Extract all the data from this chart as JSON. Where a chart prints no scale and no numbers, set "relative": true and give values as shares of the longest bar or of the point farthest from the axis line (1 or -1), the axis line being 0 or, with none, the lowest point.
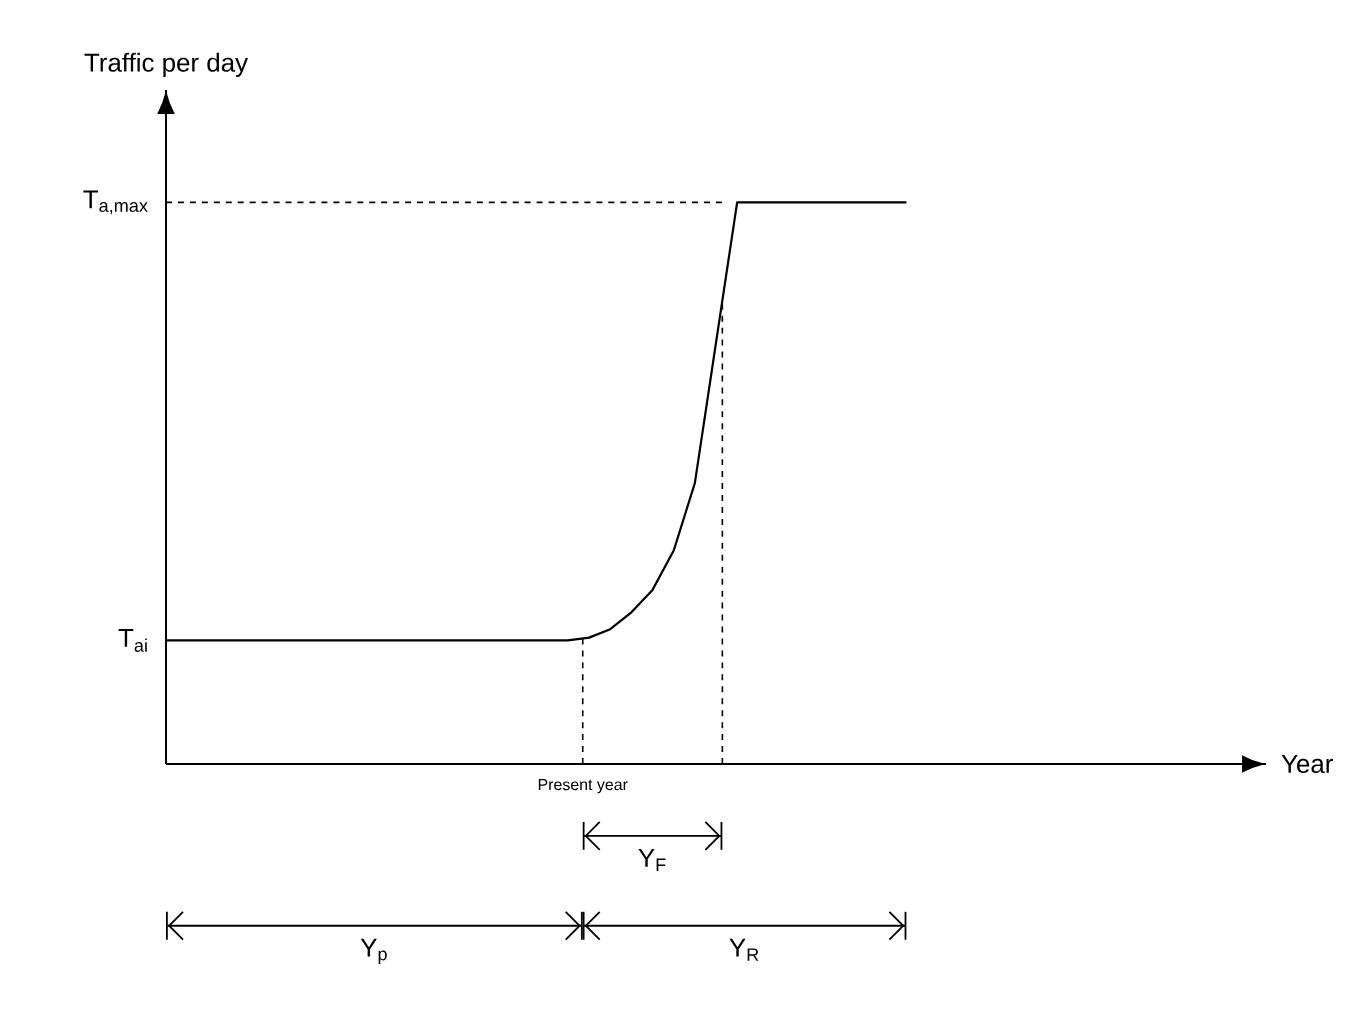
{
  "chart_data": {
    "type": "line",
    "relative": true,
    "ylabel": "Traffic per day",
    "categories": [
      null,
      null,
      null,
      null,
      null,
      null,
      null,
      null,
      null,
      null,
      null,
      null,
      null,
      null,
      null,
      null,
      null,
      null,
      null,
      null,
      null,
      null,
      null,
      null,
      null,
      null,
      null,
      null,
      null,
      null,
      null,
      null,
      null,
      null,
      null,
      null
    ],
    "series": [
      {
        "color": "#000000",
        "values": [
          0.22,
          0.22,
          0.22,
          0.22,
          0.22,
          0.22,
          0.22,
          0.22,
          0.22,
          0.22,
          0.22,
          0.22,
          0.22,
          0.22,
          0.22,
          0.22,
          0.22,
          0.22,
          0.22,
          0.22,
          0.225,
          0.24,
          0.27,
          0.31,
          0.38,
          0.5,
          0.75,
          1,
          1,
          1,
          1,
          1,
          1,
          1,
          1,
          1
        ]
      }
    ],
    "line_style": "solid",
    "ref_lines": [
      {
        "axis": "y",
        "value": 1,
        "label": "T$_{a,max}$",
        "line_style": "dashed",
        "color": "#000000"
      }
    ],
    "annotations": [
      "T$_{ai}$",
      "Present year",
      "Y$_{F}$",
      "Y$_{p}$",
      "Y$_{R}$",
      "Year"
    ]
  }
}
